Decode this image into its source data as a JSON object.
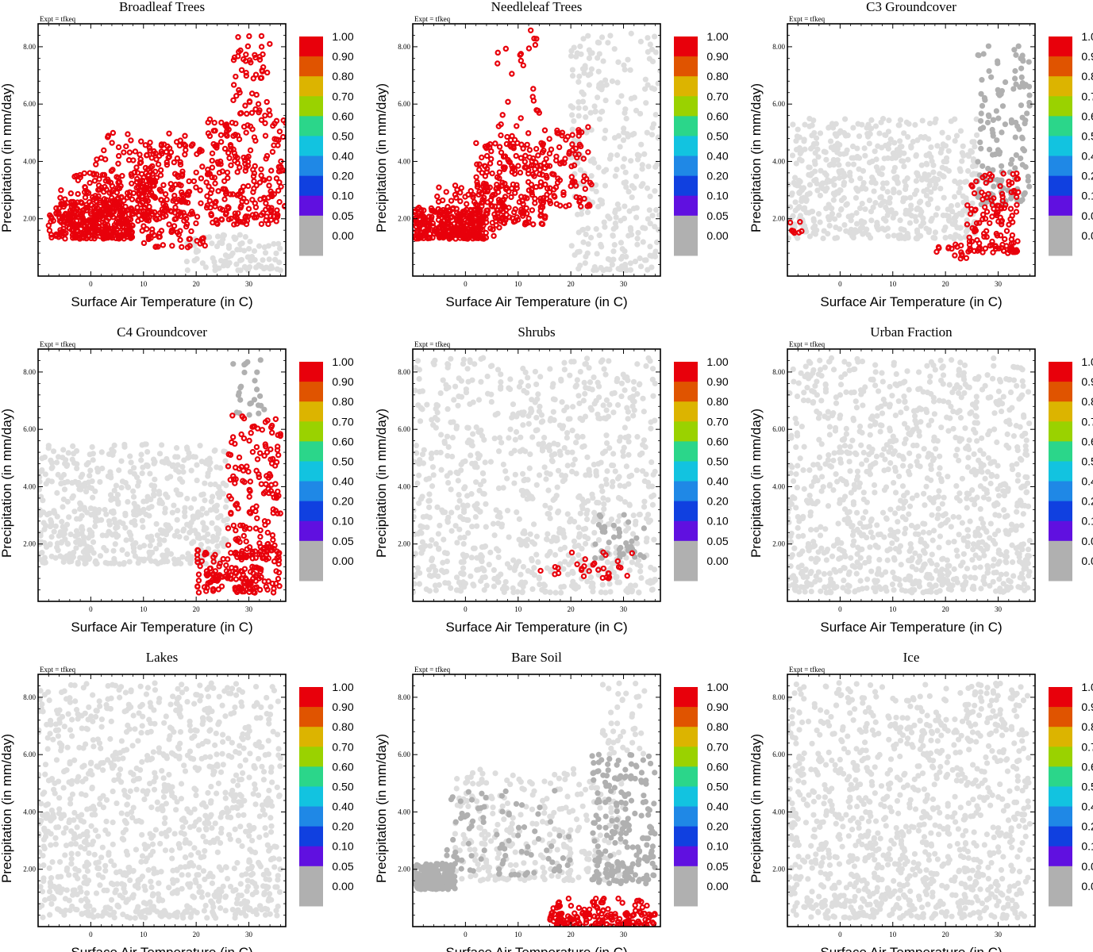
{
  "figure": {
    "expt_label": "Expt = tfkeq",
    "xlabel": "Surface Air Temperature (in C)",
    "ylabel": "Precipitation (in mm/day)",
    "xticks": [
      "0",
      "10",
      "20",
      "30"
    ],
    "yticks": [
      "2.00",
      "4.00",
      "6.00",
      "8.00"
    ],
    "colorbar": {
      "labels": [
        "1.00",
        "0.90",
        "0.80",
        "0.70",
        "0.60",
        "0.50",
        "0.40",
        "0.20",
        "0.10",
        "0.05",
        "0.00"
      ],
      "colors": [
        "#e8000b",
        "#e05400",
        "#dcb400",
        "#9ad200",
        "#2bd68a",
        "#12c3e0",
        "#1f88e6",
        "#1040e0",
        "#6010e0",
        "#b0b0b0",
        "#b0b0b0"
      ]
    },
    "background_point_color": "#dddddd",
    "zero_point_color": "#b0b0b0"
  },
  "chart_data": [
    {
      "type": "scatter",
      "title": "Broadleaf Trees",
      "xlabel": "Surface Air Temperature (in C)",
      "ylabel": "Precipitation (in mm/day)",
      "xlim": [
        -10,
        37
      ],
      "ylim": [
        0,
        8.8
      ],
      "clusters": [
        {
          "x": [
            -8,
            8
          ],
          "y": [
            1.3,
            2.6
          ],
          "n": 260,
          "fraction": 0.8
        },
        {
          "x": [
            -6,
            12
          ],
          "y": [
            1.5,
            3.6
          ],
          "n": 160,
          "fraction": 0.2
        },
        {
          "x": [
            0,
            18
          ],
          "y": [
            2.2,
            5.0
          ],
          "n": 150,
          "fraction": 0.1
        },
        {
          "x": [
            8,
            24
          ],
          "y": [
            2.0,
            4.6
          ],
          "n": 110,
          "fraction": 0.9
        },
        {
          "x": [
            22,
            37
          ],
          "y": [
            1.8,
            5.5
          ],
          "n": 220,
          "fraction": 0.95
        },
        {
          "x": [
            27,
            34
          ],
          "y": [
            5.5,
            8.5
          ],
          "n": 55,
          "fraction": 1.0
        },
        {
          "x": [
            10,
            22
          ],
          "y": [
            1.0,
            2.2
          ],
          "n": 50,
          "fraction": 0.7
        },
        {
          "x": [
            18,
            36
          ],
          "y": [
            0.2,
            1.5
          ],
          "n": 90,
          "fraction": null
        }
      ]
    },
    {
      "type": "scatter",
      "title": "Needleleaf Trees",
      "xlabel": "Surface Air Temperature (in C)",
      "ylabel": "Precipitation (in mm/day)",
      "xlim": [
        -10,
        37
      ],
      "ylim": [
        0,
        8.8
      ],
      "clusters": [
        {
          "x": [
            -10,
            4
          ],
          "y": [
            1.3,
            2.4
          ],
          "n": 250,
          "fraction": 0.7
        },
        {
          "x": [
            2,
            16
          ],
          "y": [
            1.8,
            4.8
          ],
          "n": 200,
          "fraction": 0.8
        },
        {
          "x": [
            -6,
            8
          ],
          "y": [
            1.4,
            3.2
          ],
          "n": 110,
          "fraction": 0.4
        },
        {
          "x": [
            14,
            24
          ],
          "y": [
            2.4,
            5.2
          ],
          "n": 90,
          "fraction": 0.05
        },
        {
          "x": [
            6,
            14
          ],
          "y": [
            4.5,
            8.7
          ],
          "n": 30,
          "fraction": 0.2
        },
        {
          "x": [
            20,
            37
          ],
          "y": [
            0.2,
            8.5
          ],
          "n": 300,
          "fraction": null
        }
      ]
    },
    {
      "type": "scatter",
      "title": "C3 Groundcover",
      "xlabel": "Surface Air Temperature (in C)",
      "ylabel": "Precipitation (in mm/day)",
      "xlim": [
        -10,
        37
      ],
      "ylim": [
        0,
        8.8
      ],
      "clusters": [
        {
          "x": [
            -10,
            26
          ],
          "y": [
            1.3,
            5.5
          ],
          "n": 600,
          "fraction": null
        },
        {
          "x": [
            24,
            34
          ],
          "y": [
            0.8,
            3.6
          ],
          "n": 130,
          "fraction": 0.05
        },
        {
          "x": [
            18,
            24
          ],
          "y": [
            0.6,
            1.2
          ],
          "n": 15,
          "fraction": 0.2
        },
        {
          "x": [
            26,
            36
          ],
          "y": [
            2.5,
            8.3
          ],
          "n": 140,
          "fraction": 0.0
        },
        {
          "x": [
            -10,
            -7
          ],
          "y": [
            1.5,
            2.1
          ],
          "n": 8,
          "fraction": 0.05
        }
      ]
    },
    {
      "type": "scatter",
      "title": "C4 Groundcover",
      "xlabel": "Surface Air Temperature (in C)",
      "ylabel": "Precipitation (in mm/day)",
      "xlim": [
        -10,
        37
      ],
      "ylim": [
        0,
        8.8
      ],
      "clusters": [
        {
          "x": [
            -10,
            26
          ],
          "y": [
            1.3,
            5.5
          ],
          "n": 600,
          "fraction": null
        },
        {
          "x": [
            26,
            36
          ],
          "y": [
            1.5,
            6.5
          ],
          "n": 160,
          "fraction": 0.05
        },
        {
          "x": [
            20,
            36
          ],
          "y": [
            0.3,
            1.8
          ],
          "n": 130,
          "fraction": 0.1
        },
        {
          "x": [
            27,
            33
          ],
          "y": [
            6.5,
            8.5
          ],
          "n": 25,
          "fraction": 0.0
        },
        {
          "x": [
            22,
            32
          ],
          "y": [
            0.6,
            1.2
          ],
          "n": 20,
          "fraction": 0.7
        }
      ]
    },
    {
      "type": "scatter",
      "title": "Shrubs",
      "xlabel": "Surface Air Temperature (in C)",
      "ylabel": "Precipitation (in mm/day)",
      "xlim": [
        -10,
        37
      ],
      "ylim": [
        0,
        8.8
      ],
      "clusters": [
        {
          "x": [
            -10,
            36
          ],
          "y": [
            0.3,
            8.5
          ],
          "n": 900,
          "fraction": null
        },
        {
          "x": [
            24,
            34
          ],
          "y": [
            1.5,
            3.2
          ],
          "n": 40,
          "fraction": 0.0
        },
        {
          "x": [
            20,
            32
          ],
          "y": [
            0.8,
            1.8
          ],
          "n": 25,
          "fraction": 0.2
        },
        {
          "x": [
            14,
            18
          ],
          "y": [
            0.9,
            1.2
          ],
          "n": 5,
          "fraction": 0.7
        }
      ]
    },
    {
      "type": "scatter",
      "title": "Urban Fraction",
      "xlabel": "Surface Air Temperature (in C)",
      "ylabel": "Precipitation (in mm/day)",
      "xlim": [
        -10,
        37
      ],
      "ylim": [
        0,
        8.8
      ],
      "clusters": [
        {
          "x": [
            -10,
            36
          ],
          "y": [
            0.3,
            8.5
          ],
          "n": 1100,
          "fraction": null
        }
      ]
    },
    {
      "type": "scatter",
      "title": "Lakes",
      "xlabel": "Surface Air Temperature (in C)",
      "ylabel": "Precipitation (in mm/day)",
      "xlim": [
        -10,
        37
      ],
      "ylim": [
        0,
        8.8
      ],
      "clusters": [
        {
          "x": [
            -10,
            36
          ],
          "y": [
            0.3,
            8.5
          ],
          "n": 1100,
          "fraction": null
        }
      ]
    },
    {
      "type": "scatter",
      "title": "Bare Soil",
      "xlabel": "Surface Air Temperature (in C)",
      "ylabel": "Precipitation (in mm/day)",
      "xlim": [
        -10,
        37
      ],
      "ylim": [
        0,
        8.8
      ],
      "clusters": [
        {
          "x": [
            -10,
            -2
          ],
          "y": [
            1.3,
            2.2
          ],
          "n": 220,
          "fraction": 0.0
        },
        {
          "x": [
            -4,
            20
          ],
          "y": [
            1.8,
            4.8
          ],
          "n": 90,
          "fraction": 0.0
        },
        {
          "x": [
            24,
            36
          ],
          "y": [
            1.5,
            6.0
          ],
          "n": 200,
          "fraction": 0.0
        },
        {
          "x": [
            -2,
            30
          ],
          "y": [
            1.6,
            5.5
          ],
          "n": 300,
          "fraction": null
        },
        {
          "x": [
            16,
            36
          ],
          "y": [
            0.0,
            0.5
          ],
          "n": 120,
          "fraction": 0.95
        },
        {
          "x": [
            16,
            36
          ],
          "y": [
            0.4,
            1.0
          ],
          "n": 50,
          "fraction": 0.3
        },
        {
          "x": [
            26,
            34
          ],
          "y": [
            6,
            8.5
          ],
          "n": 40,
          "fraction": null
        }
      ]
    },
    {
      "type": "scatter",
      "title": "Ice",
      "xlabel": "Surface Air Temperature (in C)",
      "ylabel": "Precipitation (in mm/day)",
      "xlim": [
        -10,
        37
      ],
      "ylim": [
        0,
        8.8
      ],
      "clusters": [
        {
          "x": [
            -10,
            36
          ],
          "y": [
            0.3,
            8.5
          ],
          "n": 1100,
          "fraction": null
        }
      ]
    }
  ]
}
